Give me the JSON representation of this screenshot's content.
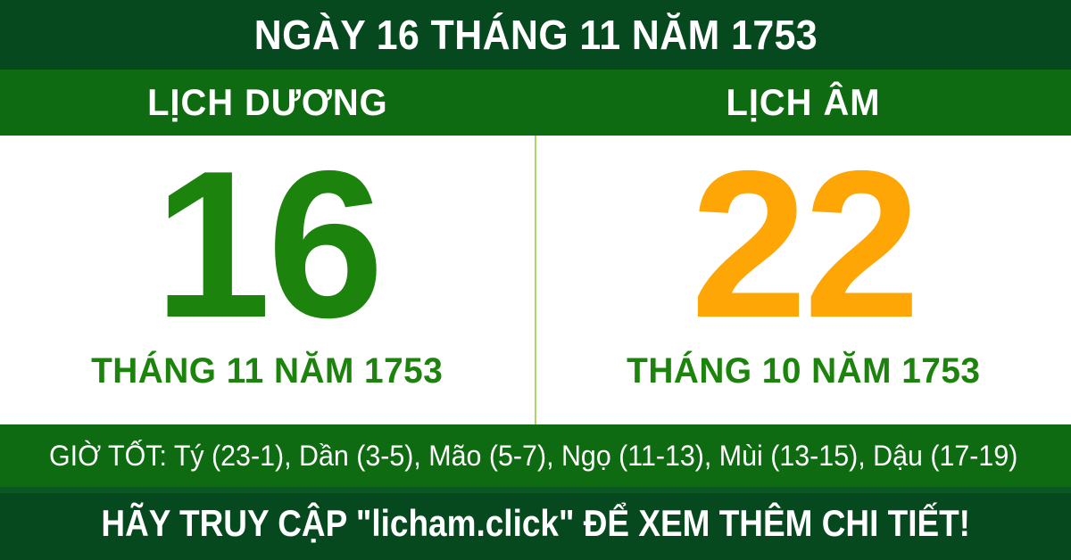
{
  "banner": {
    "title": "NGÀY 16 THÁNG 11 NĂM 1753",
    "solar": {
      "label": "LỊCH DƯƠNG",
      "day": "16",
      "month_year": "THÁNG 11 NĂM 1753"
    },
    "lunar": {
      "label": "LỊCH ÂM",
      "day": "22",
      "month_year": "THÁNG 10 NĂM 1753"
    },
    "good_hours": "GIỜ TỐT: Tý (23-1), Dần (3-5), Mão (5-7), Ngọ (11-13), Mùi (13-15), Dậu (17-19)",
    "footer_cta": "HÃY TRUY CẬP \"licham.click\" ĐỂ XEM THÊM CHI TIẾT!"
  },
  "colors": {
    "dark_green": "#07491f",
    "medium_green": "#0f6b11",
    "day_green": "#1c830d",
    "day_orange": "#ffa607",
    "divider_green": "#a6d96a",
    "panel_white": "#ffffff",
    "text_white": "#ffffff"
  }
}
